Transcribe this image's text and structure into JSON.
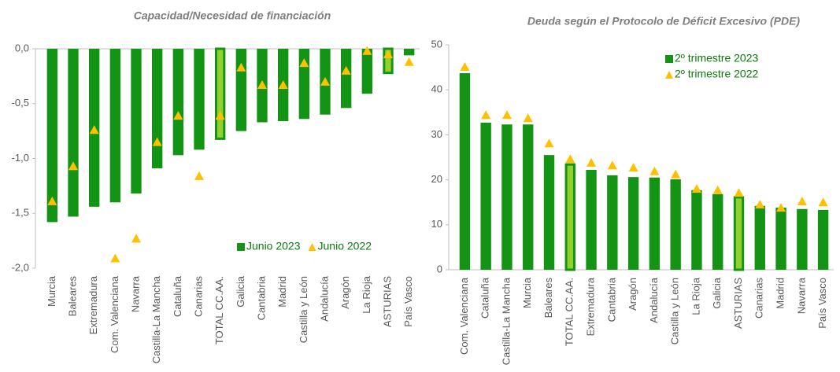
{
  "chart_data": [
    {
      "type": "bar",
      "title": "Capacidad/Necesidad de financiación",
      "categories": [
        "Murcia",
        "Baleares",
        "Extremadura",
        "Com. Valenciana",
        "Navarra",
        "Castilla-La Mancha",
        "Cataluña",
        "Canarias",
        "TOTAL CC.AA.",
        "Galicia",
        "Cantabria",
        "Madrid",
        "Castilla y León",
        "Andalucía",
        "Aragón",
        "La Rioja",
        "ASTURIAS",
        "País Vasco"
      ],
      "series": [
        {
          "name": "Junio 2023",
          "color": "#149414",
          "colors": [
            "#149414",
            "#149414",
            "#149414",
            "#149414",
            "#149414",
            "#149414",
            "#149414",
            "#149414",
            "#92d02e",
            "#149414",
            "#149414",
            "#149414",
            "#149414",
            "#149414",
            "#149414",
            "#149414",
            "#92d02e",
            "#149414"
          ],
          "values": [
            -1.58,
            -1.53,
            -1.44,
            -1.4,
            -1.32,
            -1.09,
            -0.97,
            -0.92,
            -0.82,
            -0.75,
            -0.67,
            -0.66,
            -0.64,
            -0.6,
            -0.54,
            -0.41,
            -0.22,
            -0.06
          ]
        },
        {
          "name": "Junio 2022",
          "color": "#ffc000",
          "marker": "triangle",
          "values": [
            -1.39,
            -1.07,
            -0.74,
            -1.91,
            -1.73,
            -0.85,
            -0.61,
            -1.16,
            -0.61,
            -0.17,
            -0.33,
            -0.33,
            -0.13,
            -0.3,
            -0.2,
            -0.02,
            -0.05,
            -0.12
          ]
        }
      ],
      "ylim": [
        -2,
        0
      ],
      "yticks": [
        {
          "value": 0,
          "label": "0,0"
        },
        {
          "value": -0.5,
          "label": "-0,5"
        },
        {
          "value": -1,
          "label": "-1,0"
        },
        {
          "value": -1.5,
          "label": "-1,5"
        },
        {
          "value": -2,
          "label": "-2,0"
        }
      ],
      "legend": "lower right"
    },
    {
      "type": "bar",
      "title": "Deuda según el Protocolo de Déficit Excesivo (PDE)",
      "categories": [
        "Com. Valenciana",
        "Cataluña",
        "Castilla-La Mancha",
        "Murcia",
        "Baleares",
        "TOTAL CC.AA.",
        "Extremadura",
        "Cantabria",
        "Aragón",
        "Andalucía",
        "Castilla y León",
        "La Rioja",
        "Galicia",
        "ASTURIAS",
        "Canarias",
        "Madrid",
        "Navarra",
        "País Vasco"
      ],
      "series": [
        {
          "name": "2º trimestre 2023",
          "color": "#149414",
          "colors": [
            "#149414",
            "#149414",
            "#149414",
            "#149414",
            "#149414",
            "#92d02e",
            "#149414",
            "#149414",
            "#149414",
            "#149414",
            "#149414",
            "#149414",
            "#149414",
            "#92d02e",
            "#149414",
            "#149414",
            "#149414",
            "#149414"
          ],
          "values": [
            43.7,
            32.7,
            32.3,
            32.3,
            25.5,
            23.4,
            22.2,
            21,
            20.6,
            20.5,
            20.1,
            17.7,
            16.8,
            16.1,
            14.2,
            13.8,
            13.5,
            13.3
          ]
        },
        {
          "name": "2º trimestre 2022",
          "color": "#ffc000",
          "marker": "triangle",
          "values": [
            45.1,
            34.4,
            34.4,
            33.7,
            28.1,
            24.6,
            23.8,
            23.2,
            22.7,
            21.9,
            21.2,
            18,
            17.7,
            17.1,
            14.5,
            13.8,
            15.2,
            15
          ]
        }
      ],
      "ylim": [
        0,
        50
      ],
      "yticks": [
        0,
        10,
        20,
        30,
        40,
        50
      ],
      "legend": "upper right"
    }
  ]
}
